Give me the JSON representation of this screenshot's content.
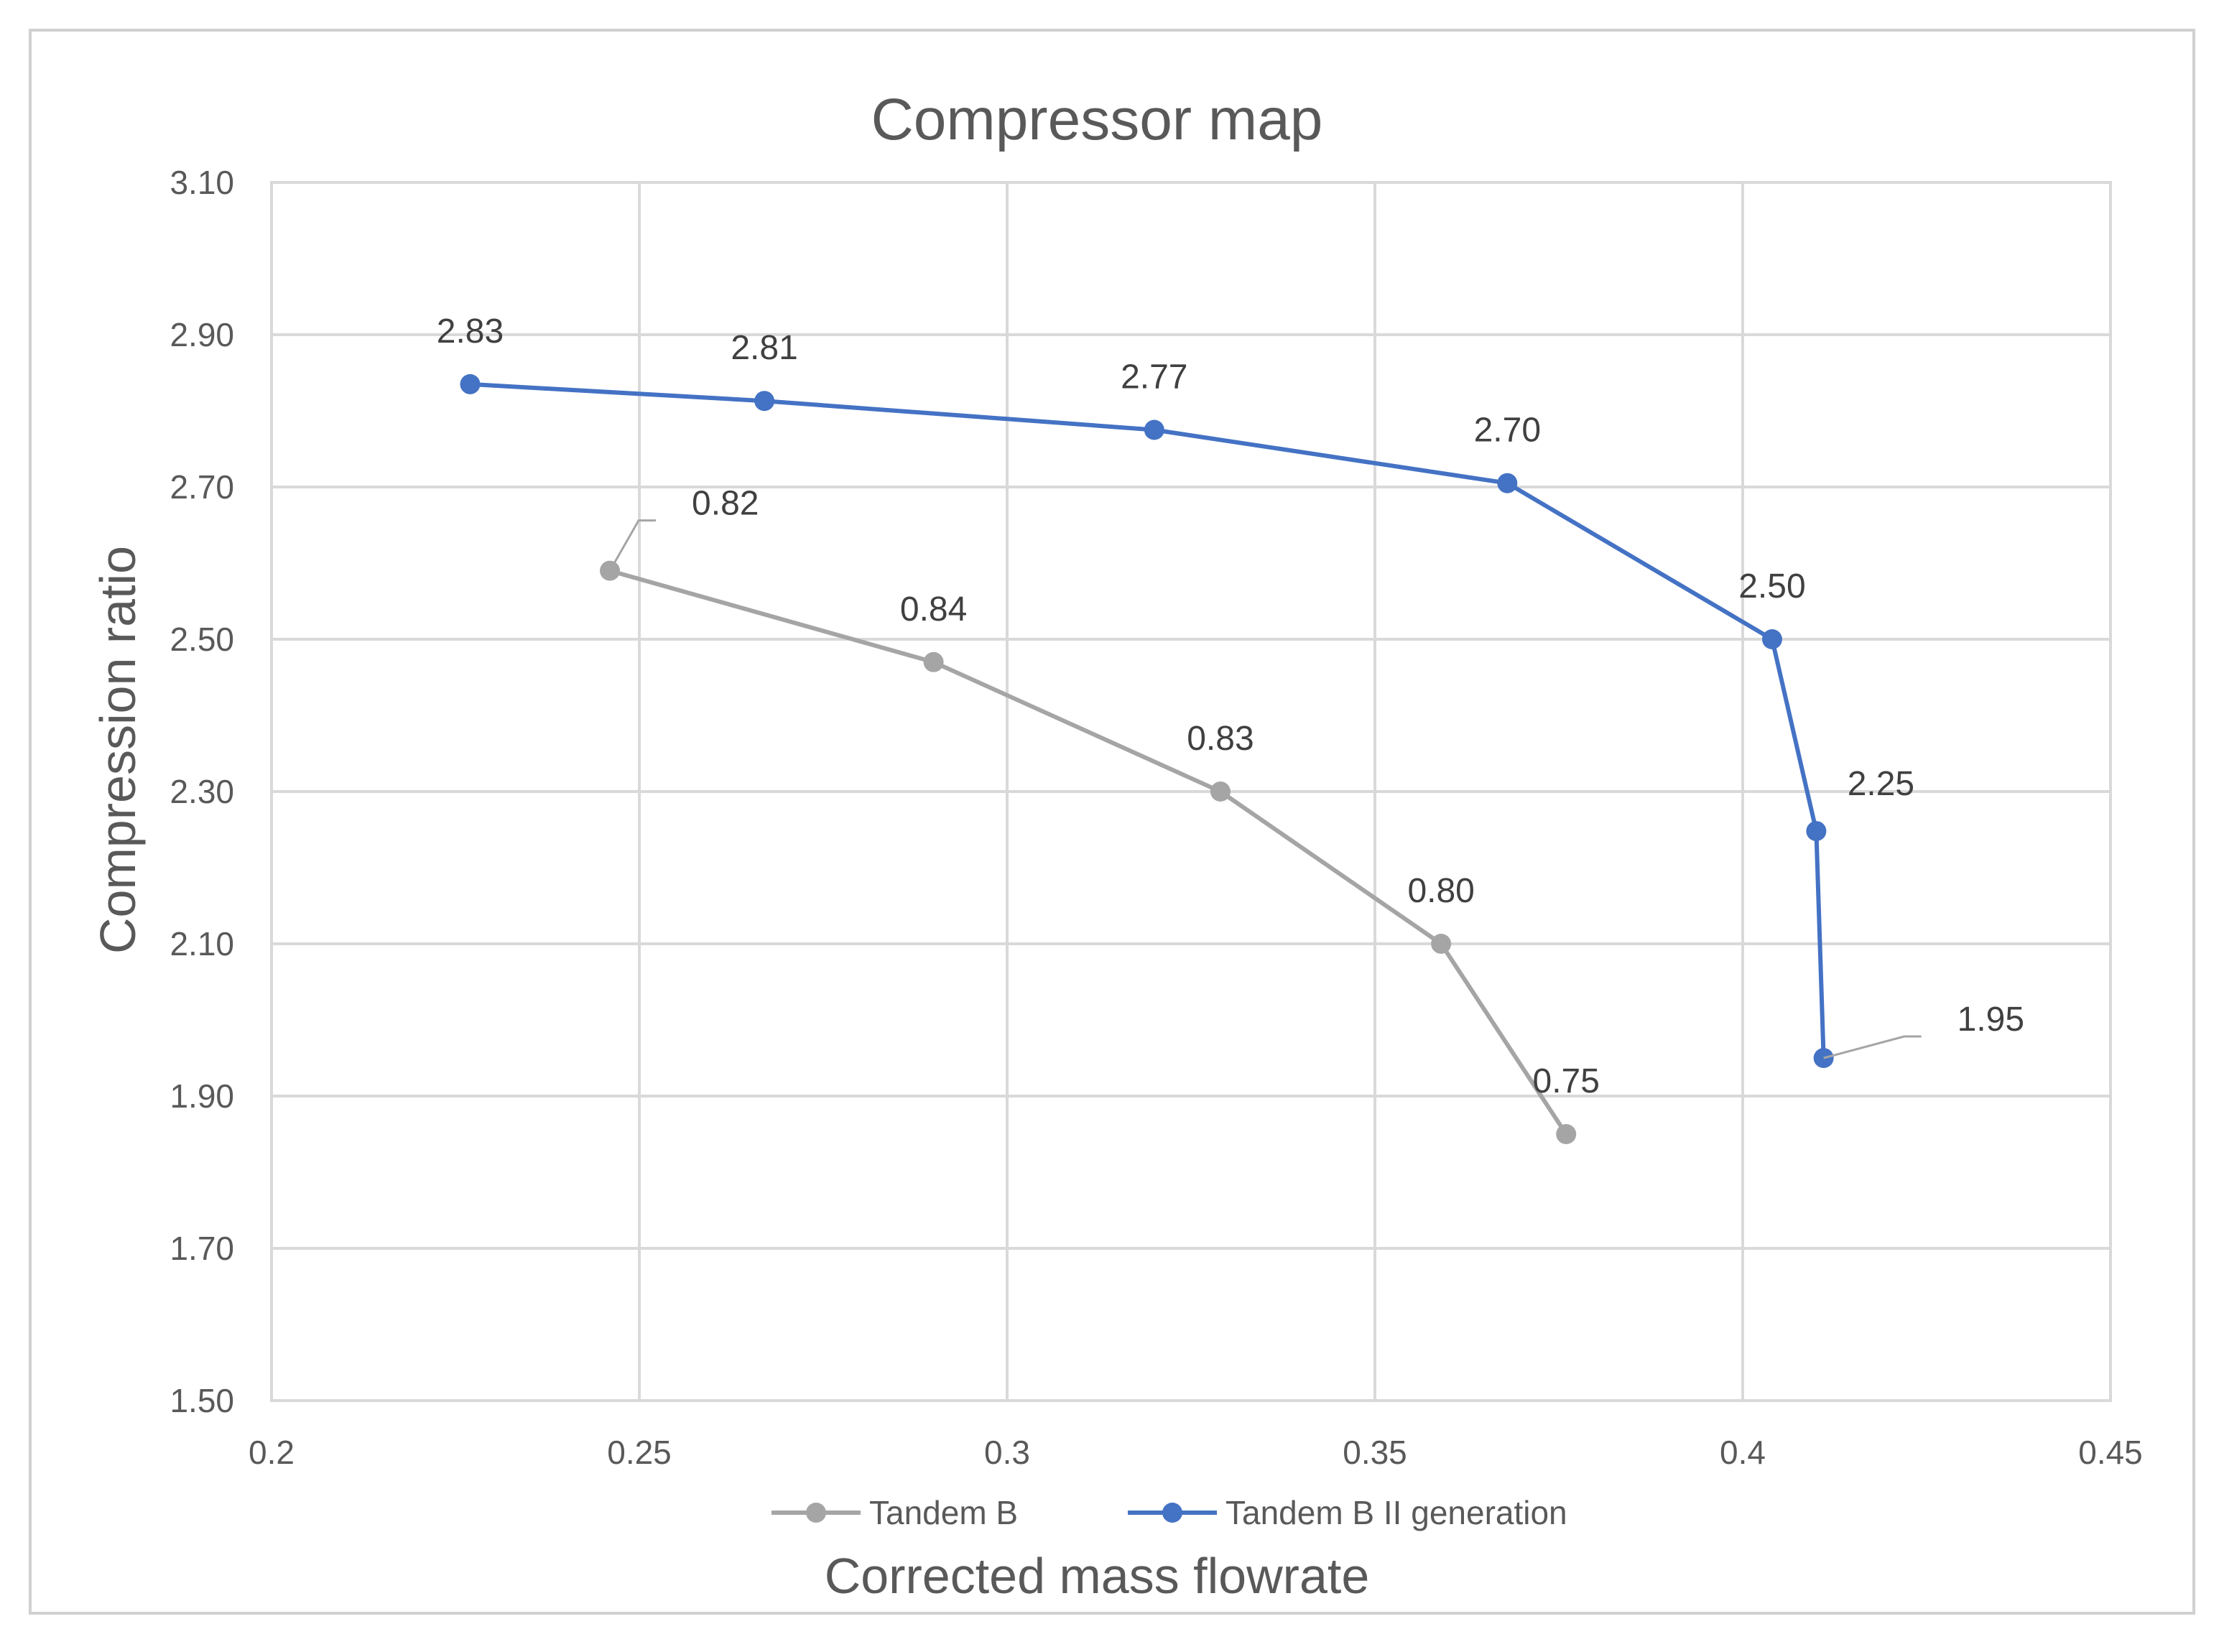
{
  "chart_data": {
    "type": "line",
    "title": "Compressor map",
    "xlabel": "Corrected mass flowrate",
    "ylabel": "Compression ratio",
    "xlim": [
      0.2,
      0.45
    ],
    "ylim": [
      1.5,
      3.1
    ],
    "x_ticks": [
      "0.2",
      "0.25",
      "0.3",
      "0.35",
      "0.4",
      "0.45"
    ],
    "y_ticks": [
      "1.50",
      "1.70",
      "1.90",
      "2.10",
      "2.30",
      "2.50",
      "2.70",
      "2.90",
      "3.10"
    ],
    "grid": true,
    "legend_position": "bottom",
    "series": [
      {
        "name": "Tandem B",
        "color": "#a5a5a5",
        "points": [
          {
            "x": 0.246,
            "y": 2.59,
            "label": "0.82"
          },
          {
            "x": 0.29,
            "y": 2.47,
            "label": "0.84"
          },
          {
            "x": 0.329,
            "y": 2.3,
            "label": "0.83"
          },
          {
            "x": 0.359,
            "y": 2.1,
            "label": "0.80"
          },
          {
            "x": 0.376,
            "y": 1.85,
            "label": "0.75"
          }
        ]
      },
      {
        "name": "Tandem B II generation",
        "color": "#4472c4",
        "points": [
          {
            "x": 0.227,
            "y": 2.835,
            "label": "2.83"
          },
          {
            "x": 0.267,
            "y": 2.813,
            "label": "2.81"
          },
          {
            "x": 0.32,
            "y": 2.775,
            "label": "2.77"
          },
          {
            "x": 0.368,
            "y": 2.705,
            "label": "2.70"
          },
          {
            "x": 0.404,
            "y": 2.5,
            "label": "2.50"
          },
          {
            "x": 0.41,
            "y": 2.248,
            "label": "2.25"
          },
          {
            "x": 0.411,
            "y": 1.95,
            "label": "1.95"
          }
        ]
      }
    ]
  }
}
